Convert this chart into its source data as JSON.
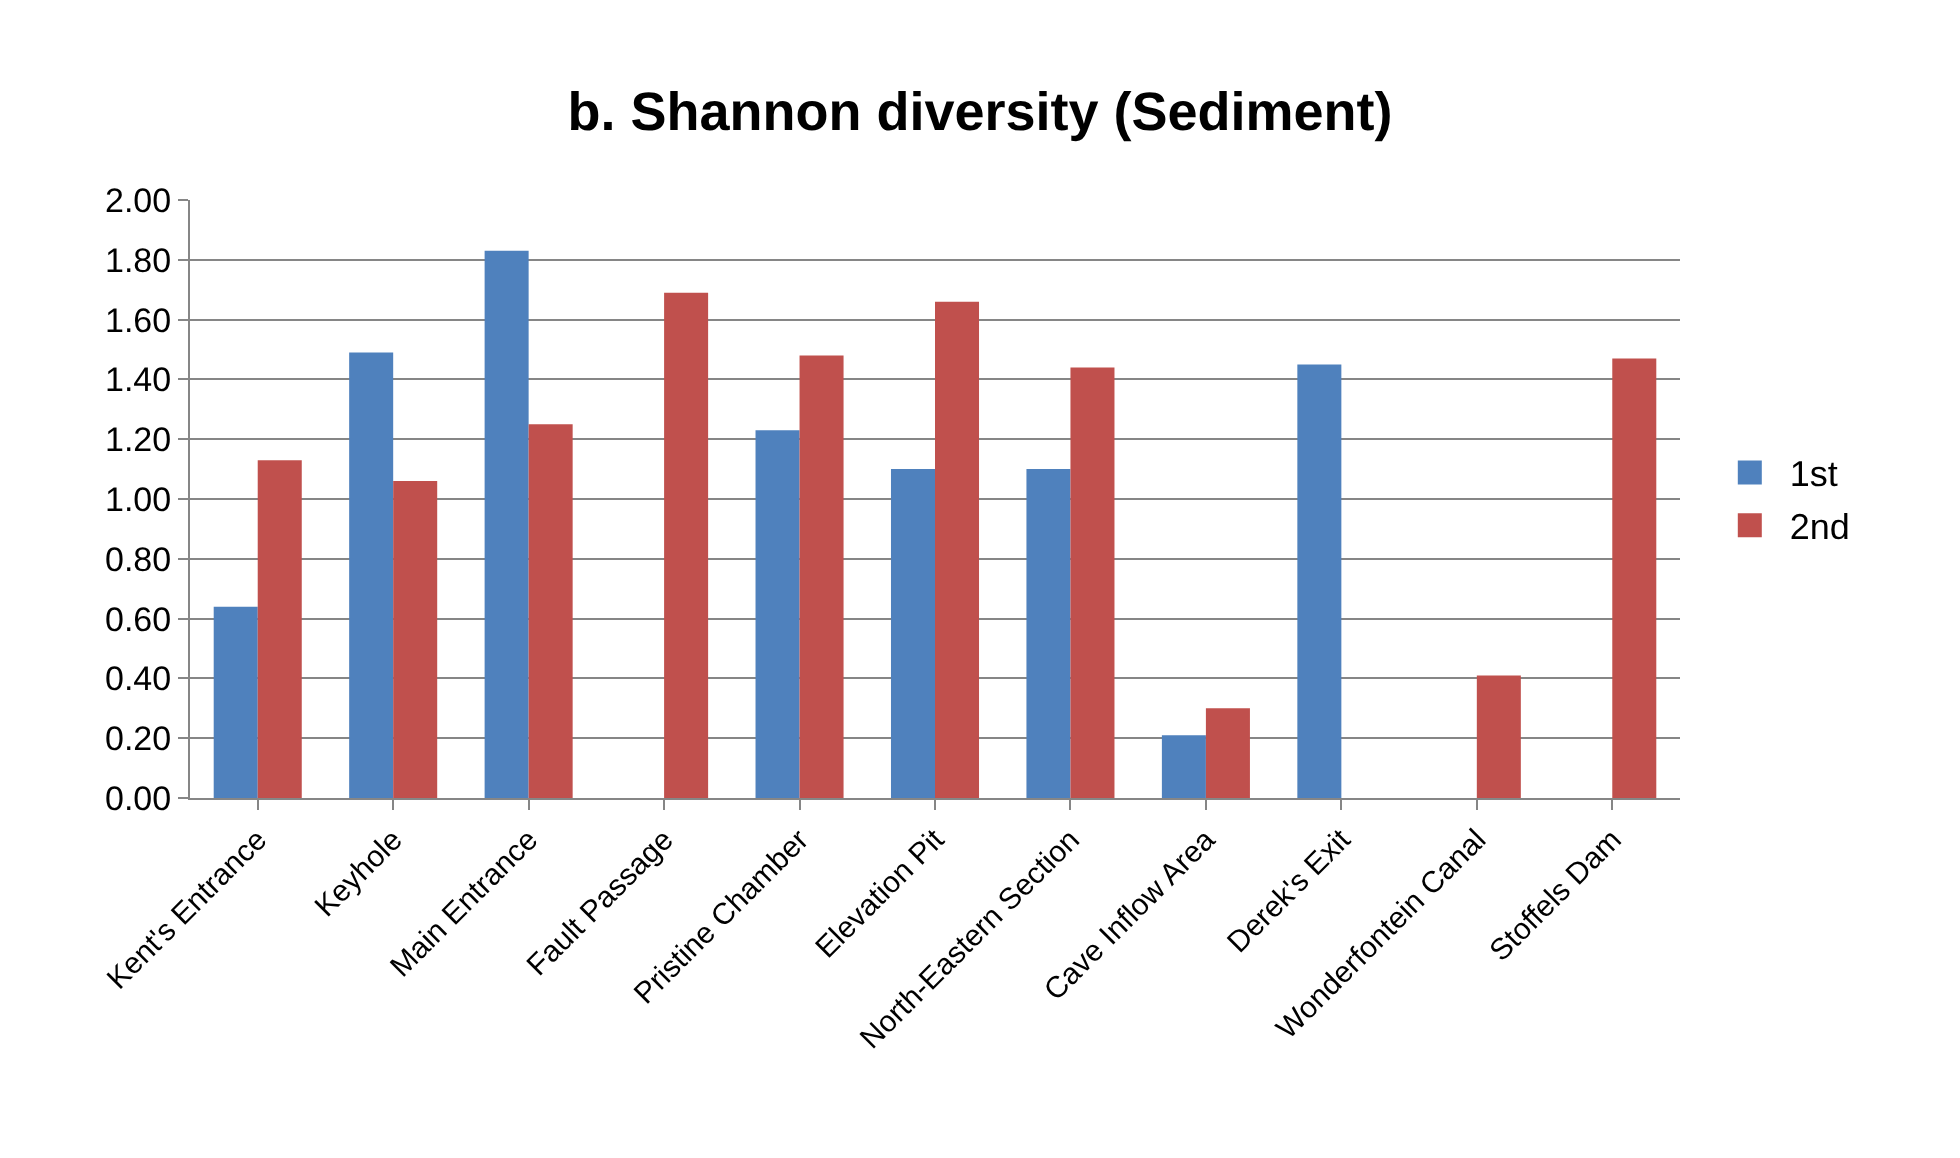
{
  "chart_data": {
    "type": "bar",
    "title": "b. Shannon diversity (Sediment)",
    "categories": [
      "Kent's Entrance",
      "Keyhole",
      "Main Entrance",
      "Fault Passage",
      "Pristine Chamber",
      "Elevation Pit",
      "North-Eastern Section",
      "Cave Inflow Area",
      "Derek's Exit",
      "Wonderfontein Canal",
      "Stoffels Dam"
    ],
    "series": [
      {
        "name": "1st",
        "color": "#4f81bd",
        "values": [
          0.64,
          1.49,
          1.83,
          null,
          1.23,
          1.1,
          1.1,
          0.21,
          1.45,
          null,
          null
        ]
      },
      {
        "name": "2nd",
        "color": "#c0504d",
        "values": [
          1.13,
          1.06,
          1.25,
          1.69,
          1.48,
          1.66,
          1.44,
          0.3,
          null,
          0.41,
          1.47
        ]
      }
    ],
    "ylim": [
      0,
      2
    ],
    "yticks": [
      {
        "value": 0,
        "label": "0.00"
      },
      {
        "value": 0.2,
        "label": "0.20"
      },
      {
        "value": 0.4,
        "label": "0.40"
      },
      {
        "value": 0.6,
        "label": "0.60"
      },
      {
        "value": 0.8,
        "label": "0.80"
      },
      {
        "value": 1.0,
        "label": "1.00"
      },
      {
        "value": 1.2,
        "label": "1.20"
      },
      {
        "value": 1.4,
        "label": "1.40"
      },
      {
        "value": 1.6,
        "label": "1.60"
      },
      {
        "value": 1.8,
        "label": "1.80"
      },
      {
        "value": 2.0,
        "label": "2.00"
      }
    ],
    "grid": "y",
    "legend": "right"
  }
}
